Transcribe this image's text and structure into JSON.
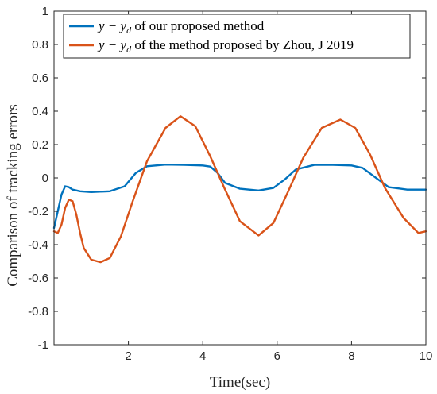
{
  "chart_data": {
    "type": "line",
    "xlabel": "Time(sec)",
    "ylabel": "Comparison of tracking errors",
    "xlim": [
      0,
      10
    ],
    "ylim": [
      -1,
      1
    ],
    "x_ticks": [
      "2",
      "4",
      "6",
      "8",
      "10"
    ],
    "y_ticks": [
      "-1",
      "-0.8",
      "-0.6",
      "-0.4",
      "-0.2",
      "0",
      "0.2",
      "0.4",
      "0.6",
      "0.8",
      "1"
    ],
    "grid": false,
    "legend_position": "top-left",
    "series": [
      {
        "name": "y − y_d of our proposed method",
        "legend_math": "y − y",
        "legend_sub": "d",
        "legend_text": " of our proposed method",
        "color": "#0072BD",
        "x": [
          0,
          0.1,
          0.2,
          0.3,
          0.4,
          0.5,
          0.7,
          1.0,
          1.5,
          1.9,
          2.2,
          2.5,
          3.0,
          3.5,
          4.0,
          4.2,
          4.4,
          4.6,
          5.0,
          5.5,
          5.9,
          6.2,
          6.5,
          7.0,
          7.5,
          8.0,
          8.3,
          8.6,
          9.0,
          9.5,
          10.0
        ],
        "y": [
          -0.3,
          -0.2,
          -0.1,
          -0.05,
          -0.055,
          -0.07,
          -0.08,
          -0.085,
          -0.08,
          -0.05,
          0.03,
          0.07,
          0.08,
          0.078,
          0.075,
          0.068,
          0.03,
          -0.03,
          -0.065,
          -0.075,
          -0.06,
          -0.01,
          0.05,
          0.078,
          0.078,
          0.075,
          0.06,
          0.01,
          -0.055,
          -0.07,
          -0.07
        ]
      },
      {
        "name": "y − y_d of the method proposed by Zhou, J 2019",
        "legend_math": "y − y",
        "legend_sub": "d",
        "legend_text": " of the method proposed by Zhou, J 2019",
        "color": "#D95319",
        "x": [
          0,
          0.1,
          0.2,
          0.3,
          0.4,
          0.5,
          0.6,
          0.7,
          0.8,
          1.0,
          1.25,
          1.5,
          1.8,
          2.1,
          2.5,
          3.0,
          3.4,
          3.8,
          4.2,
          4.6,
          5.0,
          5.5,
          5.9,
          6.3,
          6.7,
          7.2,
          7.7,
          8.1,
          8.5,
          8.9,
          9.4,
          9.8,
          10.0
        ],
        "y": [
          -0.32,
          -0.33,
          -0.28,
          -0.18,
          -0.13,
          -0.14,
          -0.22,
          -0.33,
          -0.42,
          -0.49,
          -0.505,
          -0.48,
          -0.35,
          -0.15,
          0.1,
          0.3,
          0.37,
          0.31,
          0.13,
          -0.07,
          -0.26,
          -0.345,
          -0.27,
          -0.08,
          0.12,
          0.3,
          0.35,
          0.3,
          0.14,
          -0.06,
          -0.24,
          -0.33,
          -0.32
        ]
      }
    ]
  }
}
